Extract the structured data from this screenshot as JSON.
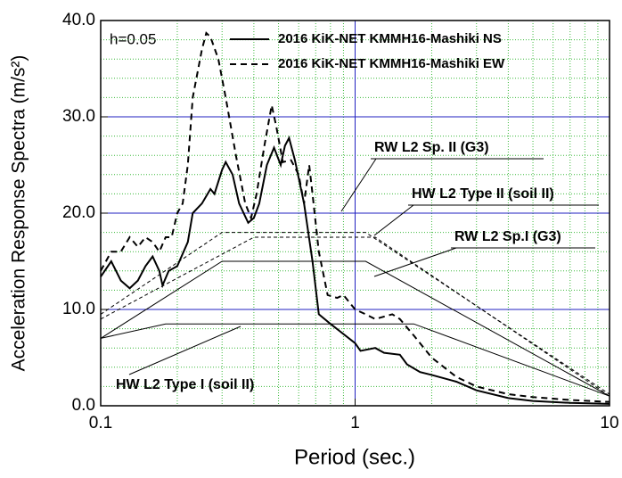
{
  "chart_data": {
    "type": "line",
    "log_x": true,
    "grid": true,
    "annotation": "h=0.05",
    "x_label": "Period (sec.)",
    "y_label": "Acceleration Response Spectra (m/s²)",
    "xlim": [
      0.1,
      10
    ],
    "xticks": [
      0.1,
      1,
      10
    ],
    "xminorticks": [
      0.2,
      0.3,
      0.4,
      0.5,
      0.6,
      0.7,
      0.8,
      0.9,
      2,
      3,
      4,
      5,
      6,
      7,
      8,
      9
    ],
    "ylim": [
      0,
      40
    ],
    "yticks": [
      {
        "value": 0,
        "label": "0.0"
      },
      {
        "value": 10,
        "label": "10.0"
      },
      {
        "value": 20,
        "label": "20.0"
      },
      {
        "value": 30,
        "label": "30.0"
      },
      {
        "value": 40,
        "label": "40.0"
      }
    ],
    "yminorticks": [
      2,
      4,
      6,
      8,
      12,
      14,
      16,
      18,
      22,
      24,
      26,
      28,
      32,
      34,
      36,
      38
    ],
    "series": [
      {
        "name": "2016 KiK-NET KMMH16-Mashiki NS",
        "color": "#000000",
        "dash": "solid",
        "width": 2,
        "in_legend": true,
        "x": [
          0.1,
          0.11,
          0.12,
          0.13,
          0.14,
          0.15,
          0.16,
          0.17,
          0.175,
          0.185,
          0.2,
          0.22,
          0.23,
          0.25,
          0.27,
          0.28,
          0.3,
          0.31,
          0.33,
          0.35,
          0.38,
          0.4,
          0.42,
          0.45,
          0.48,
          0.51,
          0.53,
          0.55,
          0.58,
          0.63,
          0.68,
          0.72,
          0.8,
          1.0,
          1.05,
          1.2,
          1.3,
          1.5,
          1.6,
          1.8,
          2,
          2.5,
          3,
          4,
          5,
          7,
          10
        ],
        "values": [
          13.4,
          15,
          13,
          12.2,
          13,
          14.5,
          15.5,
          14,
          12.5,
          14,
          14.5,
          17,
          20,
          21,
          22.5,
          22,
          24.5,
          25.3,
          24,
          21,
          19,
          19.5,
          21,
          25,
          26.8,
          25,
          27,
          27.8,
          25.5,
          21,
          15,
          9.5,
          8.5,
          6.5,
          5.7,
          6,
          5.5,
          5.3,
          4.3,
          3.5,
          3.2,
          2.5,
          1.6,
          0.8,
          0.5,
          0.3,
          0.2
        ]
      },
      {
        "name": "2016 KiK-NET KMMH16-Mashiki EW",
        "color": "#000000",
        "dash": "dashed",
        "width": 2,
        "in_legend": true,
        "x": [
          0.1,
          0.11,
          0.12,
          0.13,
          0.14,
          0.15,
          0.16,
          0.17,
          0.18,
          0.19,
          0.2,
          0.21,
          0.22,
          0.23,
          0.25,
          0.26,
          0.27,
          0.29,
          0.31,
          0.34,
          0.37,
          0.39,
          0.41,
          0.44,
          0.47,
          0.49,
          0.52,
          0.56,
          0.6,
          0.63,
          0.66,
          0.68,
          0.72,
          0.78,
          0.85,
          0.9,
          1.0,
          1.1,
          1.2,
          1.4,
          1.5,
          1.7,
          2,
          2.5,
          3,
          4,
          5,
          7,
          10
        ],
        "values": [
          14,
          16,
          16,
          17.5,
          16.5,
          17.5,
          17,
          16,
          17.5,
          17.5,
          20,
          21,
          25,
          32,
          37,
          38.7,
          38.3,
          36,
          32,
          26,
          21,
          19.5,
          22,
          27,
          31.2,
          29,
          25.3,
          25.5,
          24,
          21,
          25,
          22,
          16,
          11.5,
          11.2,
          11.5,
          10,
          9.5,
          9,
          9.5,
          9,
          7.3,
          5,
          3,
          2,
          1.2,
          0.9,
          0.6,
          0.4
        ]
      },
      {
        "name": "RW L2 Sp. II (G3)",
        "color": "#000000",
        "dash": "dashed",
        "width": 1,
        "in_legend": false,
        "x": [
          0.1,
          0.3,
          1.1,
          10
        ],
        "values": [
          9.5,
          18,
          18,
          1.2
        ]
      },
      {
        "name": "HW L2 Type II (soil II)",
        "color": "#000000",
        "dash": "dashed",
        "width": 1,
        "in_legend": false,
        "x": [
          0.1,
          0.4,
          1.2,
          10
        ],
        "values": [
          9,
          17.5,
          17.5,
          1.0
        ]
      },
      {
        "name": "RW L2 Sp.I (G3)",
        "color": "#000000",
        "dash": "solid",
        "width": 1,
        "in_legend": false,
        "x": [
          0.1,
          0.3,
          1.1,
          10
        ],
        "values": [
          7,
          15,
          15,
          1.0
        ]
      },
      {
        "name": "HW L2 Type I (soil II)",
        "color": "#000000",
        "dash": "solid",
        "width": 1,
        "in_legend": false,
        "x": [
          0.1,
          0.18,
          1.7,
          10
        ],
        "values": [
          7,
          8.5,
          8.5,
          1.0
        ]
      }
    ]
  }
}
